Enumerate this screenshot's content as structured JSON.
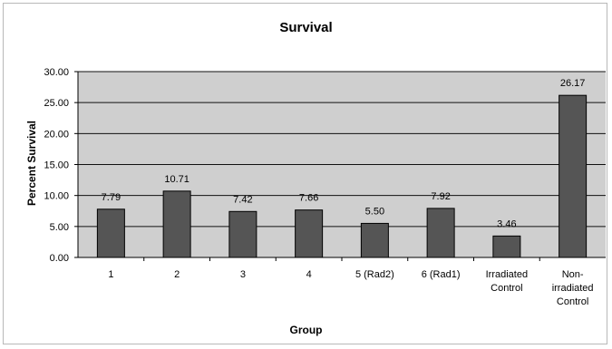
{
  "chart_data": {
    "type": "bar",
    "title": "Survival",
    "xlabel": "Group",
    "ylabel": "Percent Survival",
    "categories": [
      [
        "1"
      ],
      [
        "2"
      ],
      [
        "3"
      ],
      [
        "4"
      ],
      [
        "5 (Rad2)"
      ],
      [
        "6 (Rad1)"
      ],
      [
        "Irradiated",
        "Control"
      ],
      [
        "Non-",
        "irradiated",
        "Control"
      ]
    ],
    "values": [
      7.79,
      10.71,
      7.42,
      7.66,
      5.5,
      7.92,
      3.46,
      26.17
    ],
    "data_labels": [
      "7.79",
      "10.71",
      "7.42",
      "7.66",
      "5.50",
      "7.92",
      "3.46",
      "26.17"
    ],
    "ylim": [
      0,
      30
    ],
    "yticks": [
      "0.00",
      "5.00",
      "10.00",
      "15.00",
      "20.00",
      "25.00",
      "30.00"
    ],
    "grid": true,
    "colors": {
      "bar": "#555555",
      "plot_background": "#cfcfcf",
      "gridline": "#111111"
    }
  }
}
